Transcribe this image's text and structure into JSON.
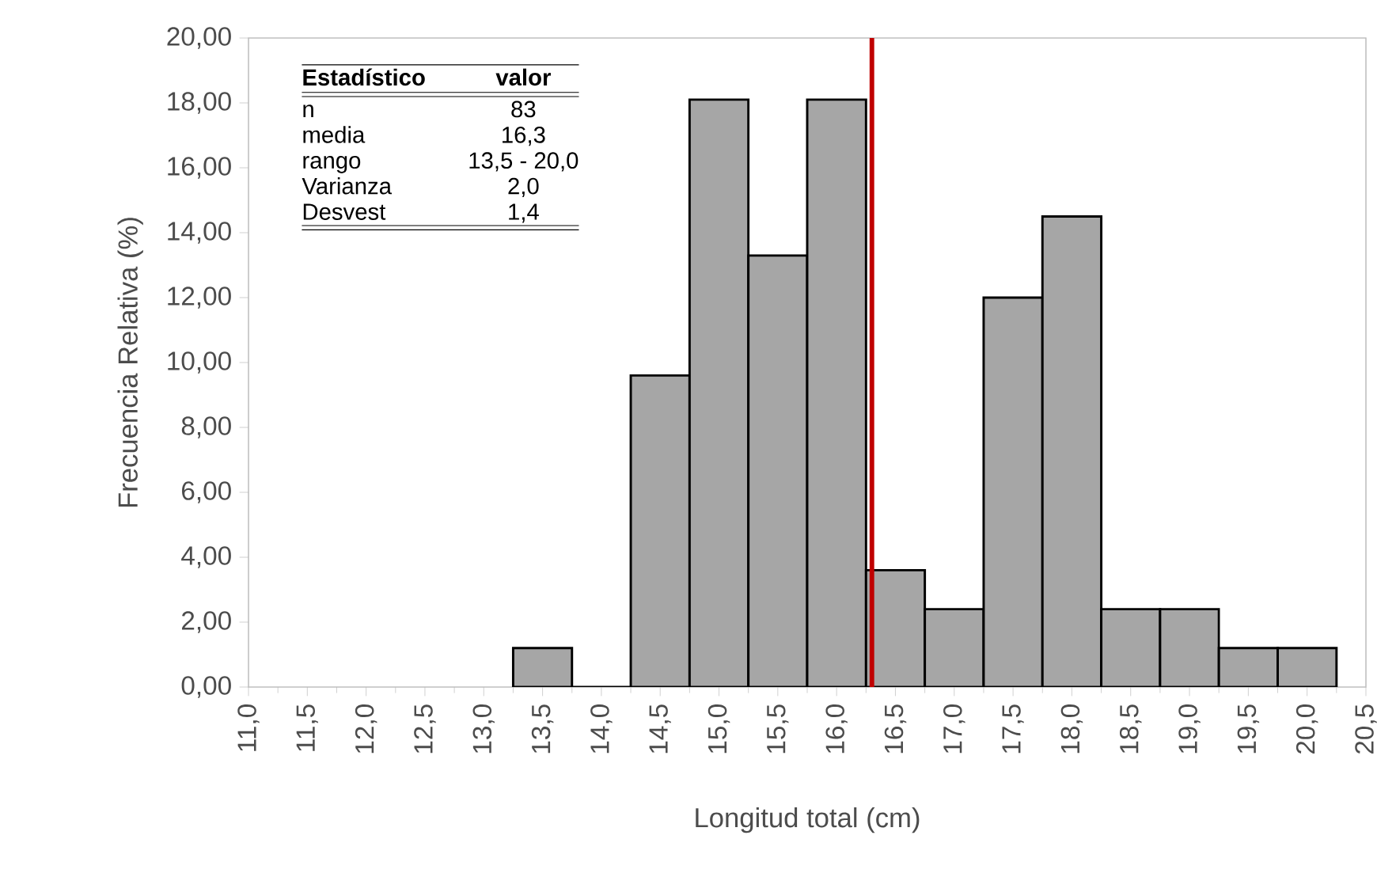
{
  "chart_data": {
    "type": "histogram",
    "xlabel": "Longitud total (cm)",
    "ylabel": "Frecuencia Relativa (%)",
    "bins": [
      13.25,
      13.75,
      14.25,
      14.75,
      15.25,
      15.75,
      16.25,
      16.75,
      17.25,
      17.75,
      18.25,
      18.75,
      19.25,
      19.75,
      20.25
    ],
    "values": [
      1.2,
      0,
      9.6,
      18.1,
      13.3,
      18.1,
      3.6,
      2.4,
      12.0,
      14.5,
      2.4,
      2.4,
      1.2,
      1.2
    ],
    "color": "#a6a6a6",
    "xlim": [
      11,
      20.5
    ],
    "xticks": [
      {
        "value": 11,
        "label": "11,0"
      },
      {
        "value": 11.5,
        "label": "11,5"
      },
      {
        "value": 12,
        "label": "12,0"
      },
      {
        "value": 12.5,
        "label": "12,5"
      },
      {
        "value": 13,
        "label": "13,0"
      },
      {
        "value": 13.5,
        "label": "13,5"
      },
      {
        "value": 14,
        "label": "14,0"
      },
      {
        "value": 14.5,
        "label": "14,5"
      },
      {
        "value": 15,
        "label": "15,0"
      },
      {
        "value": 15.5,
        "label": "15,5"
      },
      {
        "value": 16,
        "label": "16,0"
      },
      {
        "value": 16.5,
        "label": "16,5"
      },
      {
        "value": 17,
        "label": "17,0"
      },
      {
        "value": 17.5,
        "label": "17,5"
      },
      {
        "value": 18,
        "label": "18,0"
      },
      {
        "value": 18.5,
        "label": "18,5"
      },
      {
        "value": 19,
        "label": "19,0"
      },
      {
        "value": 19.5,
        "label": "19,5"
      },
      {
        "value": 20,
        "label": "20,0"
      },
      {
        "value": 20.5,
        "label": "20,5"
      }
    ],
    "ylim": [
      0,
      20
    ],
    "yticks": [
      {
        "value": 0,
        "label": "0,00"
      },
      {
        "value": 2,
        "label": "2,00"
      },
      {
        "value": 4,
        "label": "4,00"
      },
      {
        "value": 6,
        "label": "6,00"
      },
      {
        "value": 8,
        "label": "8,00"
      },
      {
        "value": 10,
        "label": "10,00"
      },
      {
        "value": 12,
        "label": "12,00"
      },
      {
        "value": 14,
        "label": "14,00"
      },
      {
        "value": 16,
        "label": "16,00"
      },
      {
        "value": 18,
        "label": "18,00"
      },
      {
        "value": 20,
        "label": "20,00"
      }
    ],
    "ref_lines": [
      {
        "axis": "x",
        "value": 16.3,
        "color": "#c00000"
      }
    ],
    "annotations": [
      "Estadístico",
      "valor",
      "n",
      "83",
      "media",
      "16,3",
      "rango",
      "13,5 - 20,0",
      "Varianza",
      "2,0",
      "Desvest",
      "1,4"
    ],
    "grid": false
  }
}
